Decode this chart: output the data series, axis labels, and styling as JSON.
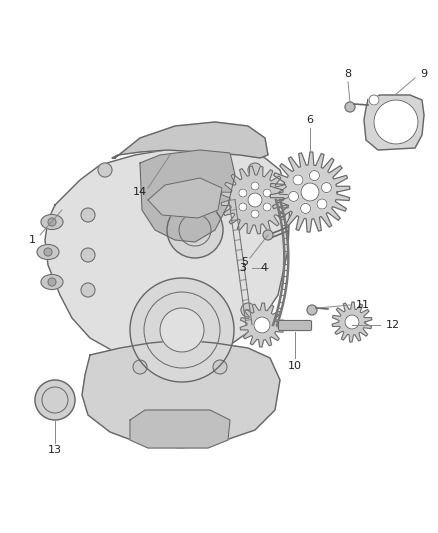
{
  "bg_color": "#ffffff",
  "line_color": "#666666",
  "fill_light": "#e0e0e0",
  "fill_mid": "#c8c8c8",
  "fill_dark": "#b0b0b0",
  "label_color": "#222222",
  "line_color2": "#888888"
}
